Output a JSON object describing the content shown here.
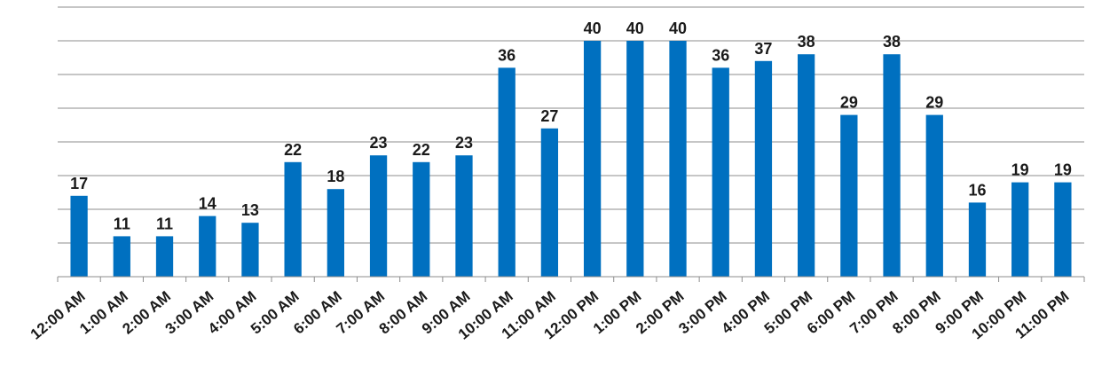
{
  "chart_data": {
    "type": "bar",
    "title": "",
    "xlabel": "",
    "ylabel": "",
    "categories": [
      "12:00 AM",
      "1:00 AM",
      "2:00 AM",
      "3:00 AM",
      "4:00 AM",
      "5:00 AM",
      "6:00 AM",
      "7:00 AM",
      "8:00 AM",
      "9:00 AM",
      "10:00 AM",
      "11:00 AM",
      "12:00 PM",
      "1:00 PM",
      "2:00 PM",
      "3:00 PM",
      "4:00 PM",
      "5:00 PM",
      "6:00 PM",
      "7:00 PM",
      "8:00 PM",
      "9:00 PM",
      "10:00 PM",
      "11:00 PM"
    ],
    "values": [
      17,
      11,
      11,
      14,
      13,
      22,
      18,
      23,
      22,
      23,
      36,
      27,
      40,
      40,
      40,
      36,
      37,
      38,
      29,
      38,
      29,
      16,
      19,
      19
    ],
    "ylim": [
      5,
      45
    ],
    "grid_step": 5,
    "grid": true,
    "legend": false,
    "data_labels": true,
    "y_tick_labels_visible": false,
    "colors": {
      "bar": "#0070c0",
      "grid": "#8c8c8c",
      "axis": "#8c8c8c",
      "text": "#1a1a1a"
    }
  }
}
